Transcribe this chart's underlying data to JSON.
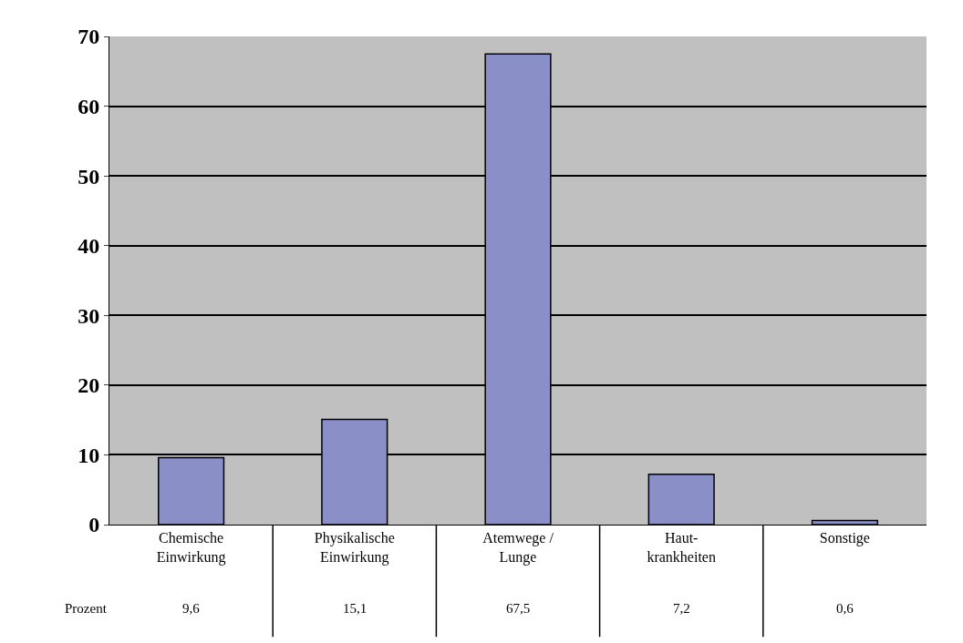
{
  "chart_data": {
    "type": "bar",
    "categories": [
      "Chemische Einwirkung",
      "Physikalische Einwirkung",
      "Atemwege / Lunge",
      "Haut-krankheiten",
      "Sonstige"
    ],
    "series": [
      {
        "name": "Prozent",
        "color": "#8b8fc8",
        "values": [
          9.6,
          15.1,
          67.5,
          7.2,
          0.6
        ],
        "value_labels": [
          "9,6",
          "15,1",
          "67,5",
          "7,2",
          "0,6"
        ]
      }
    ],
    "ylim": [
      0,
      70
    ],
    "yticks": [
      0,
      10,
      20,
      30,
      40,
      50,
      60,
      70
    ],
    "grid": "y",
    "legend": false
  }
}
